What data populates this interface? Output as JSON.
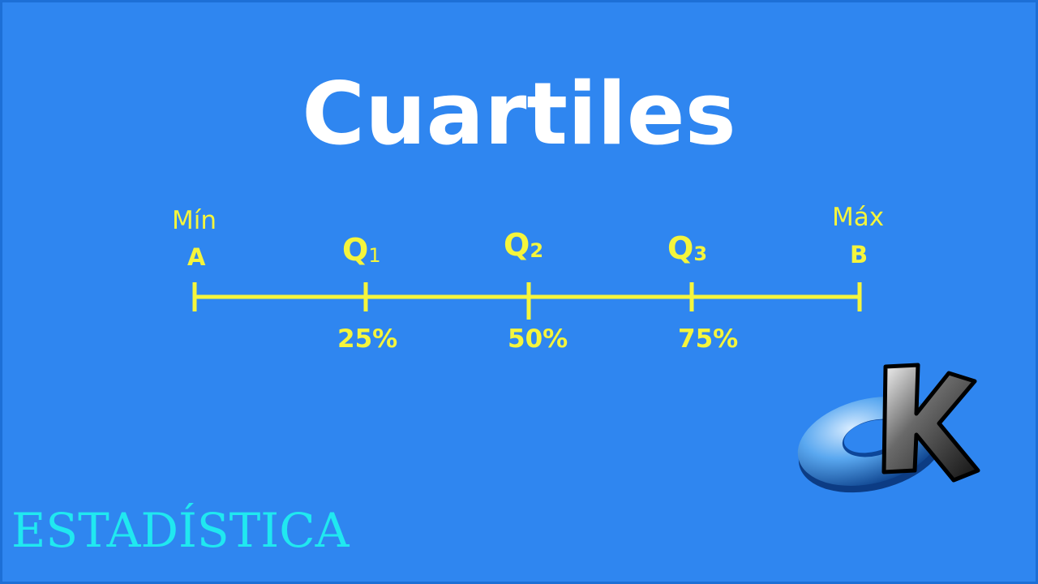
{
  "title": "Cuartiles",
  "diagram": {
    "min": {
      "caption": "Mín",
      "letter": "A"
    },
    "max": {
      "caption": "Máx",
      "letter": "B"
    },
    "quartiles": [
      {
        "letter": "Q",
        "index": "1",
        "percent": "25%"
      },
      {
        "letter": "Q",
        "index": "2",
        "percent": "50%"
      },
      {
        "letter": "Q",
        "index": "3",
        "percent": "75%"
      }
    ]
  },
  "footer": "ESTADÍSTICA",
  "colors": {
    "background": "#2f86f0",
    "axis": "#f5f53c",
    "title": "#ffffff",
    "footer": "#20e8f0"
  },
  "logo": {
    "icon": "ring-k-logo-icon"
  }
}
